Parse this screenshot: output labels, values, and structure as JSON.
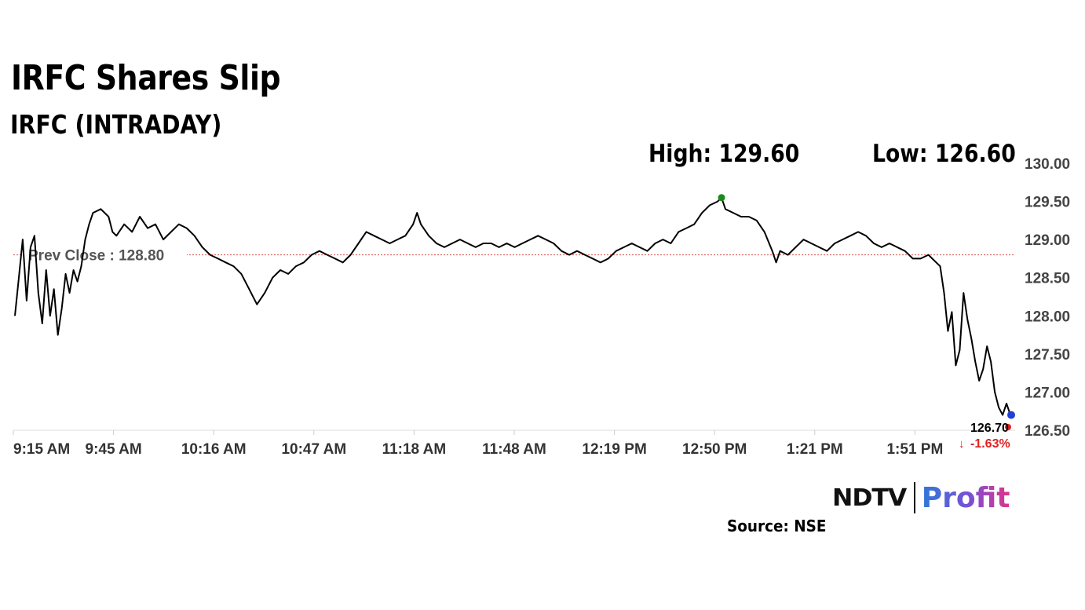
{
  "header": {
    "title": "IRFC Shares Slip",
    "subtitle": "IRFC (INTRADAY)",
    "high_label": "High: 129.60",
    "low_label": "Low: 126.60"
  },
  "footer": {
    "logo_ndtv": "NDTV",
    "logo_profit": "Profit",
    "source": "Source: NSE"
  },
  "chart_data": {
    "type": "line",
    "ylim": [
      126.5,
      130.0
    ],
    "y_ticks": [
      "130.00",
      "129.50",
      "129.00",
      "128.50",
      "128.00",
      "127.50",
      "127.00",
      "126.50"
    ],
    "x_ticks": [
      "9:15 AM",
      "9:45 AM",
      "10:16 AM",
      "10:47 AM",
      "11:18 AM",
      "11:48 AM",
      "12:19 PM",
      "12:50 PM",
      "1:21 PM",
      "1:51 PM"
    ],
    "prev_close": {
      "value": 128.8,
      "label": "Prev Close : 128.80"
    },
    "last": {
      "value": 126.7,
      "label": "126.70",
      "change_label": "-1.63%"
    },
    "high_point": {
      "x": "12:50 PM",
      "value": 129.55
    },
    "grid": false,
    "colors": {
      "line": "#000000",
      "prev_close": "#d9534f",
      "high": "#1a8a1a",
      "low": "#e02020",
      "last": "#1f3fd6",
      "change": "#e02020"
    },
    "series": [
      {
        "points": [
          [
            0,
            128.0
          ],
          [
            0.5,
            128.5
          ],
          [
            1,
            129.0
          ],
          [
            1.5,
            128.2
          ],
          [
            2,
            128.9
          ],
          [
            2.5,
            129.05
          ],
          [
            3,
            128.3
          ],
          [
            3.5,
            127.9
          ],
          [
            4,
            128.6
          ],
          [
            4.5,
            128.0
          ],
          [
            5,
            128.35
          ],
          [
            5.5,
            127.75
          ],
          [
            6,
            128.1
          ],
          [
            6.5,
            128.55
          ],
          [
            7,
            128.3
          ],
          [
            7.5,
            128.6
          ],
          [
            8,
            128.45
          ],
          [
            8.5,
            128.65
          ],
          [
            9,
            129.0
          ],
          [
            9.5,
            129.2
          ],
          [
            10,
            129.35
          ],
          [
            11,
            129.4
          ],
          [
            12,
            129.3
          ],
          [
            12.5,
            129.1
          ],
          [
            13,
            129.05
          ],
          [
            14,
            129.2
          ],
          [
            15,
            129.1
          ],
          [
            16,
            129.3
          ],
          [
            17,
            129.15
          ],
          [
            18,
            129.2
          ],
          [
            19,
            129.0
          ],
          [
            20,
            129.1
          ],
          [
            21,
            129.2
          ],
          [
            22,
            129.15
          ],
          [
            23,
            129.05
          ],
          [
            24,
            128.9
          ],
          [
            25,
            128.8
          ],
          [
            26,
            128.75
          ],
          [
            27,
            128.7
          ],
          [
            28,
            128.65
          ],
          [
            29,
            128.55
          ],
          [
            30,
            128.35
          ],
          [
            31,
            128.15
          ],
          [
            32,
            128.3
          ],
          [
            33,
            128.5
          ],
          [
            34,
            128.6
          ],
          [
            35,
            128.55
          ],
          [
            36,
            128.65
          ],
          [
            37,
            128.7
          ],
          [
            38,
            128.8
          ],
          [
            39,
            128.85
          ],
          [
            40,
            128.8
          ],
          [
            41,
            128.75
          ],
          [
            42,
            128.7
          ],
          [
            43,
            128.8
          ],
          [
            44,
            128.95
          ],
          [
            45,
            129.1
          ],
          [
            46,
            129.05
          ],
          [
            47,
            129.0
          ],
          [
            48,
            128.95
          ],
          [
            49,
            129.0
          ],
          [
            50,
            129.05
          ],
          [
            51,
            129.2
          ],
          [
            51.5,
            129.35
          ],
          [
            52,
            129.2
          ],
          [
            53,
            129.05
          ],
          [
            54,
            128.95
          ],
          [
            55,
            128.9
          ],
          [
            56,
            128.95
          ],
          [
            57,
            129.0
          ],
          [
            58,
            128.95
          ],
          [
            59,
            128.9
          ],
          [
            60,
            128.95
          ],
          [
            61,
            128.95
          ],
          [
            62,
            128.9
          ],
          [
            63,
            128.95
          ],
          [
            64,
            128.9
          ],
          [
            65,
            128.95
          ],
          [
            66,
            129.0
          ],
          [
            67,
            129.05
          ],
          [
            68,
            129.0
          ],
          [
            69,
            128.95
          ],
          [
            70,
            128.85
          ],
          [
            71,
            128.8
          ],
          [
            72,
            128.85
          ],
          [
            73,
            128.8
          ],
          [
            74,
            128.75
          ],
          [
            75,
            128.7
          ],
          [
            76,
            128.75
          ],
          [
            77,
            128.85
          ],
          [
            78,
            128.9
          ],
          [
            79,
            128.95
          ],
          [
            80,
            128.9
          ],
          [
            81,
            128.85
          ],
          [
            82,
            128.95
          ],
          [
            83,
            129.0
          ],
          [
            84,
            128.95
          ],
          [
            85,
            129.1
          ],
          [
            86,
            129.15
          ],
          [
            87,
            129.2
          ],
          [
            88,
            129.35
          ],
          [
            89,
            129.45
          ],
          [
            90,
            129.5
          ],
          [
            90.5,
            129.55
          ],
          [
            91,
            129.4
          ],
          [
            92,
            129.35
          ],
          [
            93,
            129.3
          ],
          [
            94,
            129.3
          ],
          [
            95,
            129.25
          ],
          [
            96,
            129.1
          ],
          [
            97,
            128.85
          ],
          [
            97.5,
            128.7
          ],
          [
            98,
            128.85
          ],
          [
            99,
            128.8
          ],
          [
            100,
            128.9
          ],
          [
            101,
            129.0
          ],
          [
            102,
            128.95
          ],
          [
            103,
            128.9
          ],
          [
            104,
            128.85
          ],
          [
            105,
            128.95
          ],
          [
            106,
            129.0
          ],
          [
            107,
            129.05
          ],
          [
            108,
            129.1
          ],
          [
            109,
            129.05
          ],
          [
            110,
            128.95
          ],
          [
            111,
            128.9
          ],
          [
            112,
            128.95
          ],
          [
            113,
            128.9
          ],
          [
            114,
            128.85
          ],
          [
            115,
            128.75
          ],
          [
            116,
            128.75
          ],
          [
            117,
            128.8
          ],
          [
            118,
            128.7
          ],
          [
            118.5,
            128.65
          ],
          [
            119,
            128.3
          ],
          [
            119.5,
            127.8
          ],
          [
            120,
            128.05
          ],
          [
            120.5,
            127.35
          ],
          [
            121,
            127.55
          ],
          [
            121.5,
            128.3
          ],
          [
            122,
            127.95
          ],
          [
            122.5,
            127.7
          ],
          [
            123,
            127.4
          ],
          [
            123.5,
            127.15
          ],
          [
            124,
            127.3
          ],
          [
            124.5,
            127.6
          ],
          [
            125,
            127.4
          ],
          [
            125.5,
            127.0
          ],
          [
            126,
            126.8
          ],
          [
            126.5,
            126.7
          ],
          [
            127,
            126.85
          ],
          [
            127.5,
            126.7
          ]
        ]
      }
    ]
  }
}
